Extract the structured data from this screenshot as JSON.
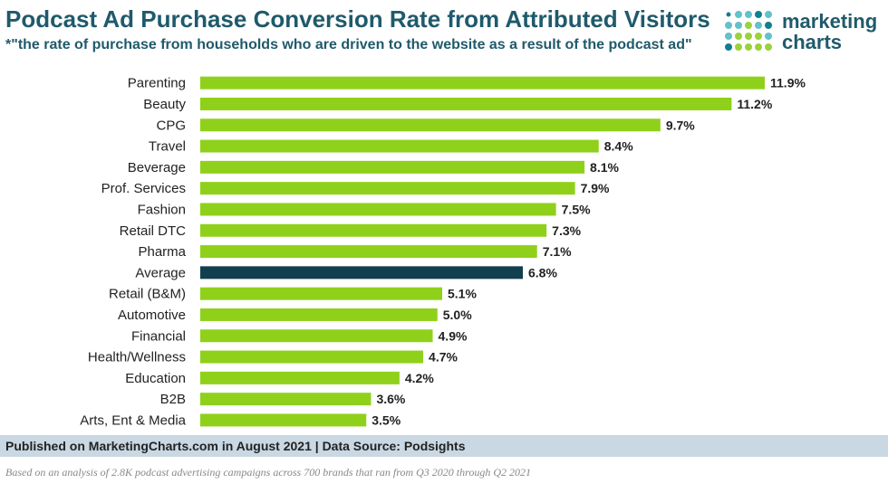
{
  "header": {
    "title": "Podcast Ad Purchase Conversion Rate from Attributed Visitors",
    "subtitle": "*\"the rate of purchase from households who are driven to the website as a result of the podcast ad\""
  },
  "logo": {
    "line1": "marketing",
    "line2": "charts",
    "dot_colors": [
      "#0f7f8f",
      "#63c1c9",
      "#9ad23c"
    ]
  },
  "colors": {
    "bar": "#8fd11a",
    "highlight_bar": "#123f4f",
    "label": "#222222",
    "footer_bg": "#c9d8e2"
  },
  "chart_data": {
    "type": "bar",
    "orientation": "horizontal",
    "title": "Podcast Ad Purchase Conversion Rate from Attributed Visitors",
    "categories": [
      "Parenting",
      "Beauty",
      "CPG",
      "Travel",
      "Beverage",
      "Prof. Services",
      "Fashion",
      "Retail DTC",
      "Pharma",
      "Average",
      "Retail (B&M)",
      "Automotive",
      "Financial",
      "Health/Wellness",
      "Education",
      "B2B",
      "Arts, Ent & Media"
    ],
    "values": [
      11.9,
      11.2,
      9.7,
      8.4,
      8.1,
      7.9,
      7.5,
      7.3,
      7.1,
      6.8,
      5.1,
      5.0,
      4.9,
      4.7,
      4.2,
      3.6,
      3.5
    ],
    "value_labels": [
      "11.9%",
      "11.2%",
      "9.7%",
      "8.4%",
      "8.1%",
      "7.9%",
      "7.5%",
      "7.3%",
      "7.1%",
      "6.8%",
      "5.1%",
      "5.0%",
      "4.9%",
      "4.7%",
      "4.2%",
      "3.6%",
      "3.5%"
    ],
    "highlight_category": "Average",
    "unit": "%",
    "xlim": [
      0,
      12
    ]
  },
  "footer": {
    "source": "Published on MarketingCharts.com in August 2021 | Data Source: Podsights",
    "note": "Based on an analysis of 2.8K podcast advertising campaigns across 700 brands that ran from Q3 2020 through Q2 2021"
  }
}
